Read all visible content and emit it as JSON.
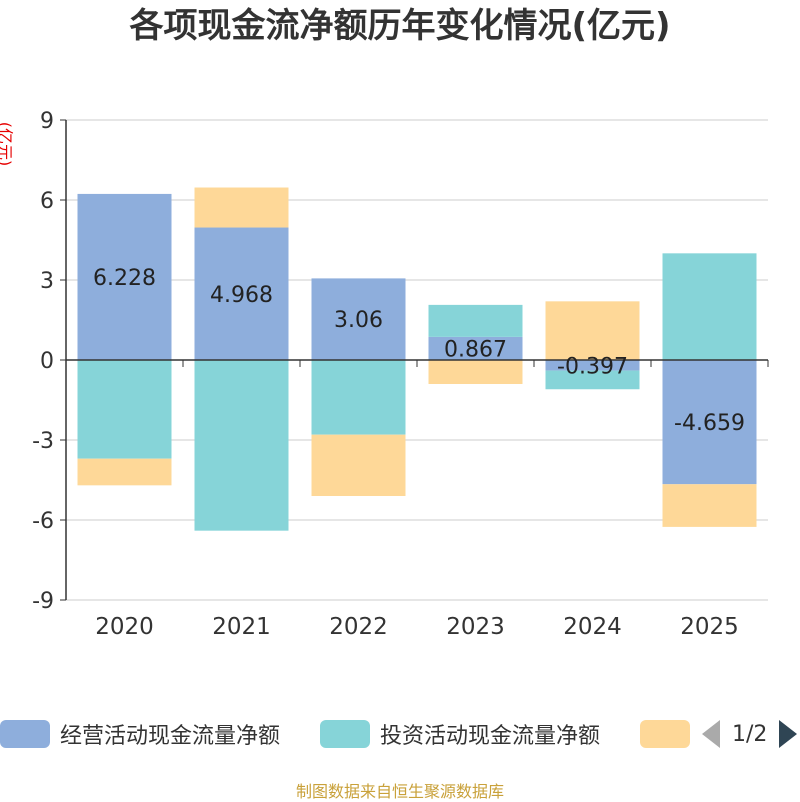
{
  "page": {
    "title": "各项现金流净额历年变化情况(亿元)",
    "yunit": "(亿元)",
    "footer": "制图数据来自恒生聚源数据库"
  },
  "legend": {
    "items": [
      {
        "label": "经营活动现金流量净额",
        "color": "#8eaedc"
      },
      {
        "label": "投资活动现金流量净额",
        "color": "#86d4d8"
      },
      {
        "label": "",
        "color": "#fed898"
      }
    ],
    "pager": "1/2"
  },
  "chart_data": {
    "type": "bar",
    "stacked": true,
    "categories": [
      "2020",
      "2021",
      "2022",
      "2023",
      "2024",
      "2025"
    ],
    "ylim": [
      -9,
      9
    ],
    "yticks": [
      9,
      6,
      3,
      0,
      -3,
      -6,
      -9
    ],
    "series": [
      {
        "name": "经营活动现金流量净额",
        "color": "#8eaedc",
        "values": [
          6.228,
          4.968,
          3.06,
          0.867,
          -0.397,
          -4.659
        ],
        "labels": [
          "6.228",
          "4.968",
          "3.06",
          "0.867",
          "-0.397",
          "-4.659"
        ]
      },
      {
        "name": "投资活动现金流量净额",
        "color": "#86d4d8",
        "values": [
          -3.7,
          -6.4,
          -2.8,
          1.2,
          -0.7,
          4.0
        ]
      },
      {
        "name": "",
        "color": "#fed898",
        "values": [
          -1.0,
          1.5,
          -2.3,
          -0.9,
          2.2,
          -1.6
        ]
      }
    ]
  }
}
